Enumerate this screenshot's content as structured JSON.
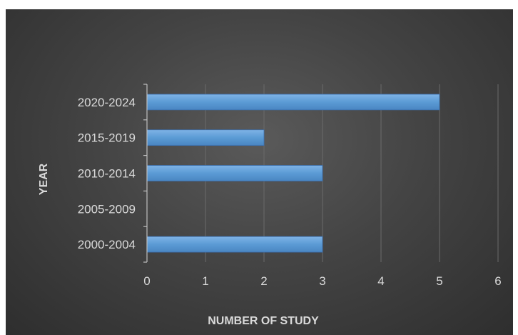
{
  "colors": {
    "bar_fill": "#5b9bd5",
    "text": "#d9d9d9",
    "gridline": "#6a6a6a"
  },
  "chart_data": {
    "type": "bar",
    "orientation": "horizontal",
    "categories": [
      "2000-2004",
      "2005-2009",
      "2010-2014",
      "2015-2019",
      "2020-2024"
    ],
    "values": [
      3,
      0,
      3,
      2,
      5
    ],
    "xlabel": "NUMBER OF STUDY",
    "ylabel": "YEAR",
    "xlim": [
      0,
      6
    ],
    "xticks": [
      "0",
      "1",
      "2",
      "3",
      "4",
      "5",
      "6"
    ],
    "grid": "vertical",
    "legend": "none"
  }
}
